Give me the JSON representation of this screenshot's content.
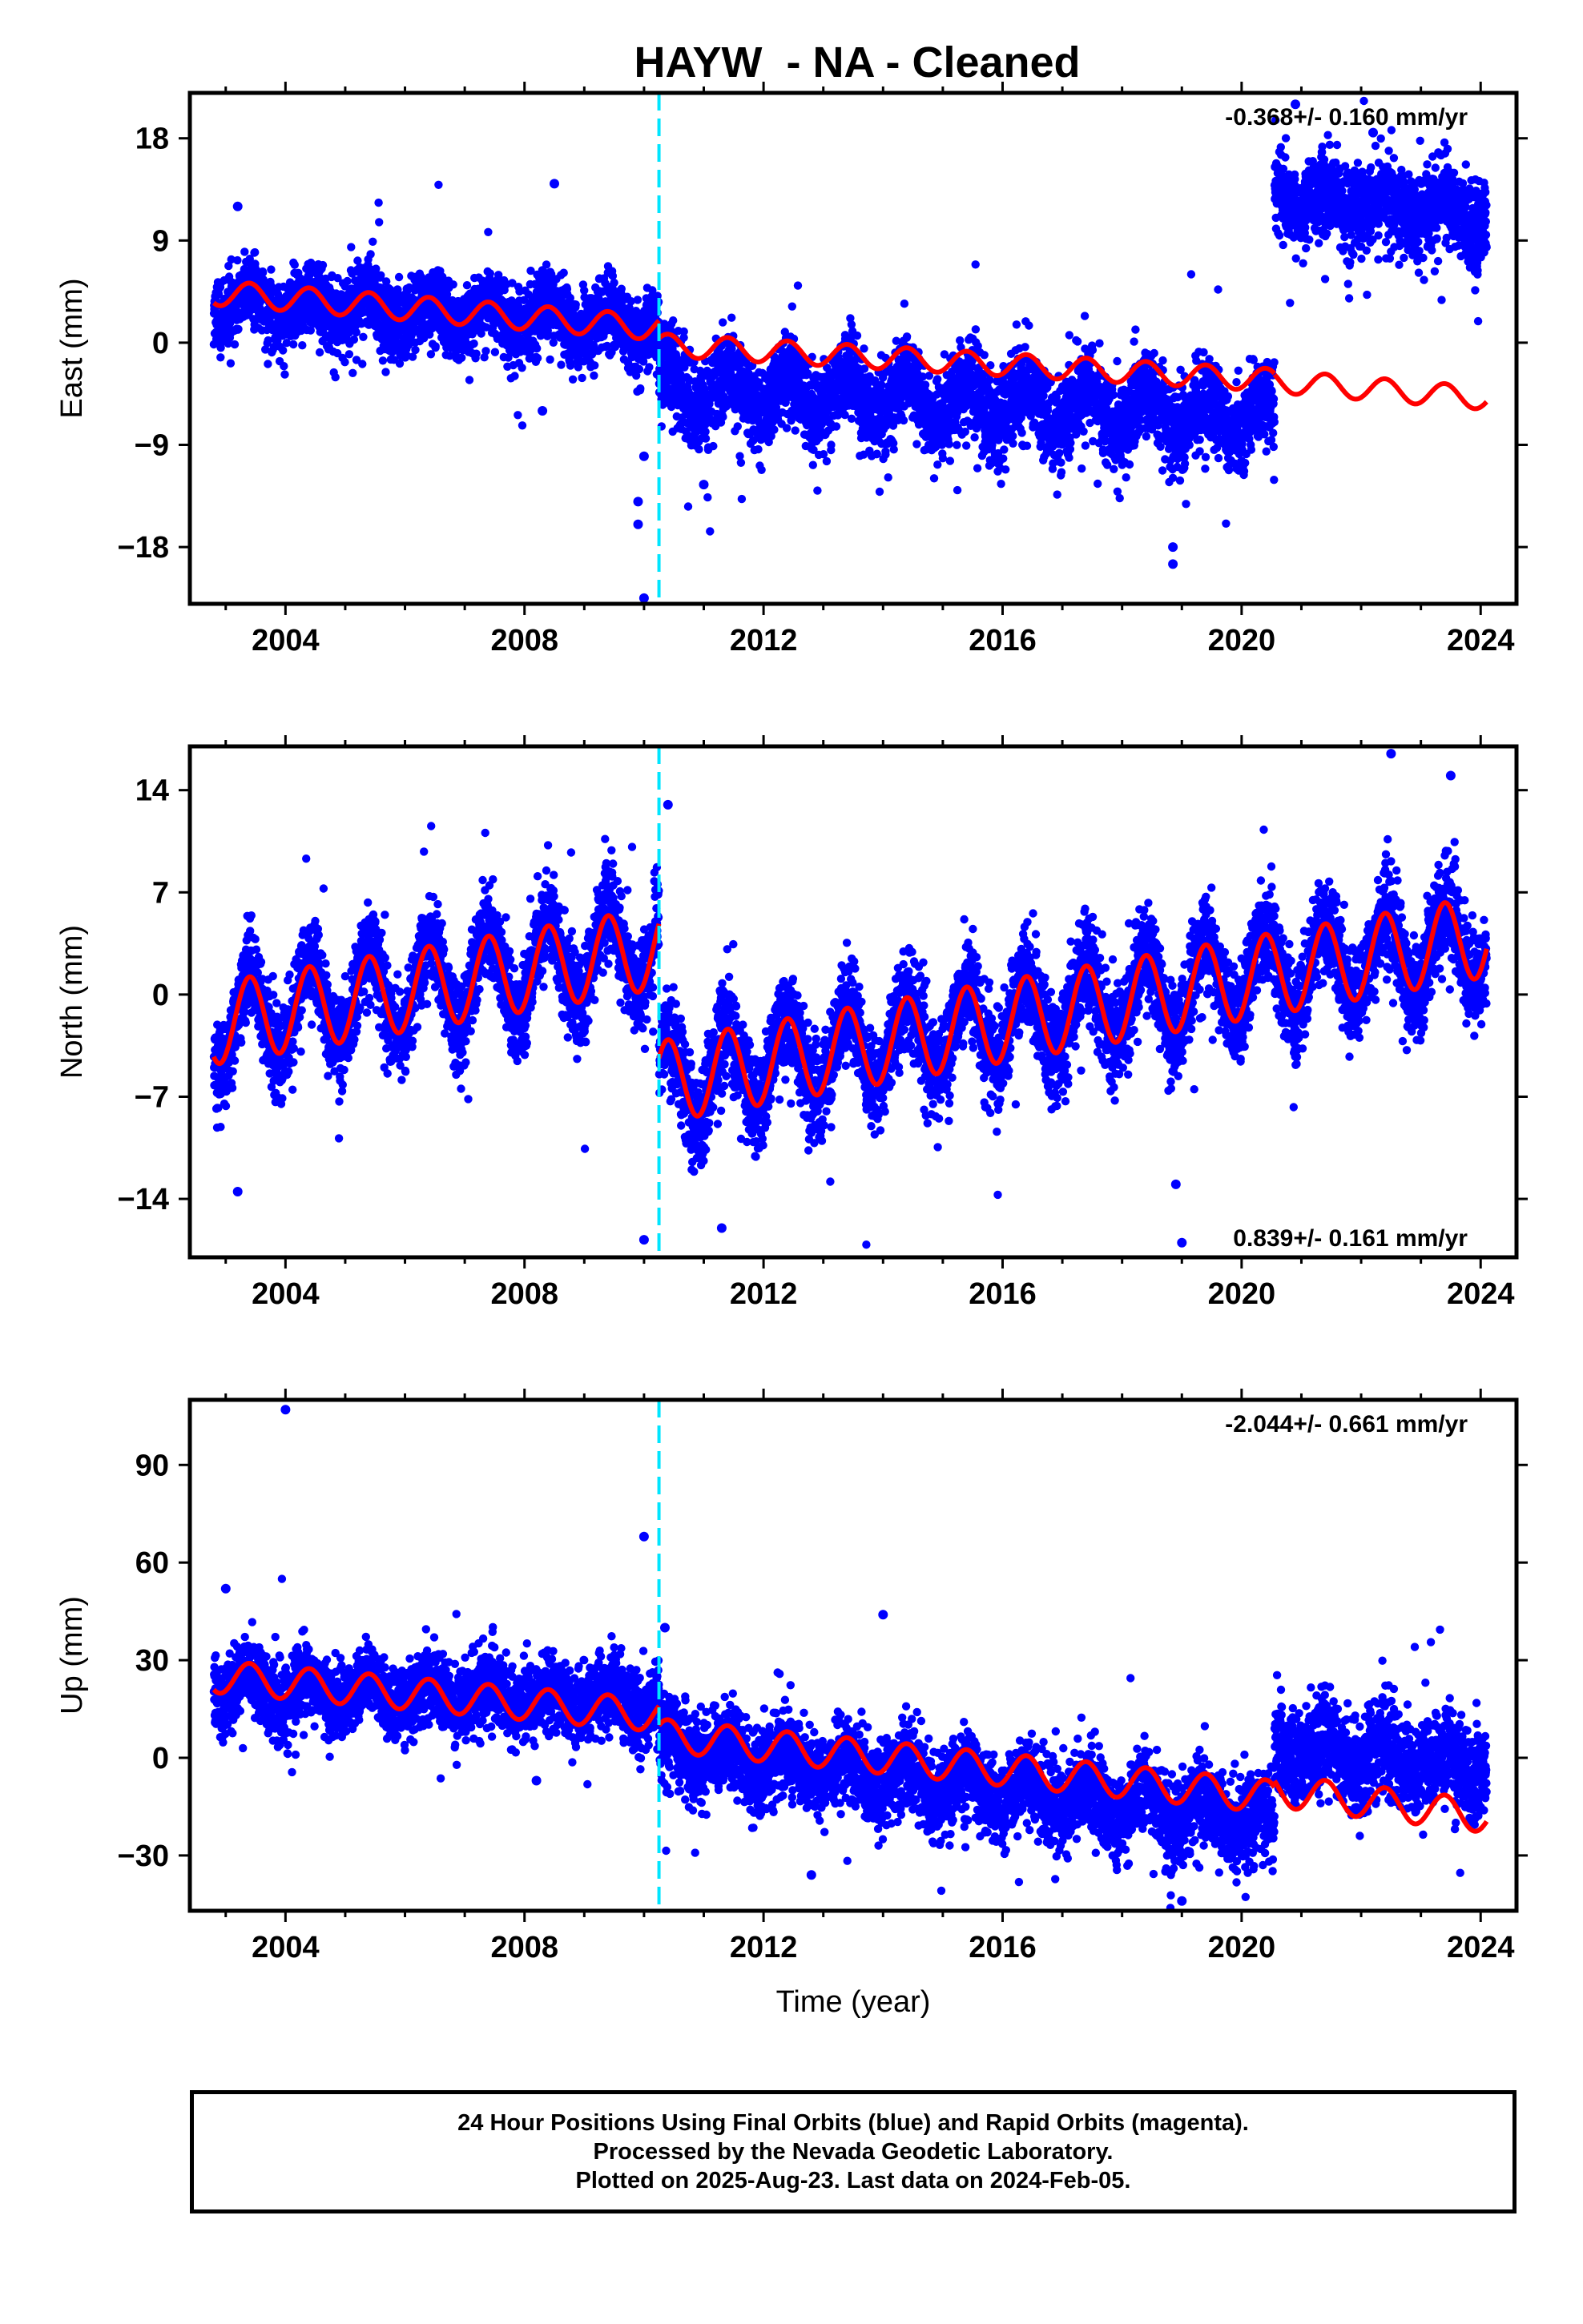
{
  "chart_data": {
    "type": "scatter",
    "title": "HAYW  - NA - Cleaned",
    "xlabel": "Time (year)",
    "xlim": [
      2002.4,
      2024.6
    ],
    "xticks": [
      2004,
      2008,
      2012,
      2016,
      2020,
      2024
    ],
    "xtick_labels": [
      "2004",
      "2008",
      "2012",
      "2016",
      "2020",
      "2024"
    ],
    "event_line_x": 2010.25,
    "colors": {
      "points": "#0000ff",
      "model": "#ff0000",
      "event": "#00e5ff"
    },
    "panels": [
      {
        "id": "east",
        "ylabel": "East (mm)",
        "ylim": [
          -23,
          22
        ],
        "yticks": [
          -18,
          -9,
          0,
          9,
          18
        ],
        "ytick_labels": [
          "−18",
          "−9",
          "0",
          "9",
          "18"
        ],
        "rate_label": "-0.368+/- 0.160 mm/yr",
        "rate_position": "top-right",
        "segments": [
          {
            "from": 2002.8,
            "to": 2010.25,
            "mean": [
              3.5,
              1.5
            ],
            "scatter": 1.6,
            "amp": 1.2,
            "model_mean": [
              4.4,
              1.3
            ],
            "model_amp": 1.1
          },
          {
            "from": 2010.25,
            "to": 2020.55,
            "mean": [
              -4.0,
              -6.5
            ],
            "scatter": 1.9,
            "amp": 1.8,
            "model_mean": [
              -0.2,
              -3.3
            ],
            "model_amp": 1.0
          },
          {
            "from": 2020.55,
            "to": 2024.1,
            "mean": [
              13.0,
              11.0
            ],
            "scatter": 1.8,
            "amp": 1.0,
            "model_mean": [
              -3.4,
              -4.9
            ],
            "model_amp": 1.0
          }
        ],
        "outliers": [
          {
            "x": 2003.2,
            "y": 12.0
          },
          {
            "x": 2008.5,
            "y": 14.0
          },
          {
            "x": 2008.3,
            "y": -6.0
          },
          {
            "x": 2010.0,
            "y": -22.5
          },
          {
            "x": 2009.9,
            "y": -14.0
          },
          {
            "x": 2009.9,
            "y": -16.0
          },
          {
            "x": 2010.0,
            "y": -10.0
          },
          {
            "x": 2011.0,
            "y": -12.5
          },
          {
            "x": 2018.85,
            "y": -18.0
          },
          {
            "x": 2018.85,
            "y": -19.5
          },
          {
            "x": 2020.9,
            "y": 21.0
          },
          {
            "x": 2022.2,
            "y": 18.5
          }
        ]
      },
      {
        "id": "north",
        "ylabel": "North (mm)",
        "ylim": [
          -18,
          17
        ],
        "yticks": [
          -14,
          -7,
          0,
          7,
          14
        ],
        "ytick_labels": [
          "−14",
          "−7",
          "0",
          "7",
          "14"
        ],
        "rate_label": "0.839+/- 0.161 mm/yr",
        "rate_position": "bottom-right",
        "segments": [
          {
            "from": 2002.8,
            "to": 2010.25,
            "mean": [
              -2.0,
              3.5
            ],
            "scatter": 1.6,
            "amp": 3.0,
            "model_mean": [
              -2.0,
              3.2
            ],
            "model_amp": 2.8
          },
          {
            "from": 2010.25,
            "to": 2024.1,
            "mean": [
              -6.0,
              4.0
            ],
            "scatter": 1.7,
            "amp": 2.8,
            "model_mean": [
              -6.0,
              4.0
            ],
            "model_amp": 2.8
          }
        ],
        "outliers": [
          {
            "x": 2003.2,
            "y": -13.5
          },
          {
            "x": 2010.0,
            "y": -16.8
          },
          {
            "x": 2011.3,
            "y": -16.0
          },
          {
            "x": 2018.9,
            "y": -13.0
          },
          {
            "x": 2019.0,
            "y": -17.0
          },
          {
            "x": 2022.5,
            "y": 16.5
          },
          {
            "x": 2023.5,
            "y": 15.0
          },
          {
            "x": 2010.4,
            "y": 13.0
          }
        ]
      },
      {
        "id": "up",
        "ylabel": "Up (mm)",
        "ylim": [
          -47,
          110
        ],
        "yticks": [
          -30,
          0,
          30,
          60,
          90
        ],
        "ytick_labels": [
          "−30",
          "0",
          "30",
          "60",
          "90"
        ],
        "rate_label": "-2.044+/- 0.661 mm/yr",
        "rate_position": "top-right",
        "segments": [
          {
            "from": 2002.8,
            "to": 2010.25,
            "mean": [
              22.0,
              17.0
            ],
            "scatter": 5.5,
            "amp": 4.0,
            "model_mean": [
              25.0,
              13.0
            ],
            "model_amp": 5.0
          },
          {
            "from": 2010.25,
            "to": 2020.55,
            "mean": [
              3.0,
              -20.0
            ],
            "scatter": 6.5,
            "amp": 4.5,
            "model_mean": [
              7.0,
              -12.0
            ],
            "model_amp": 5.0
          },
          {
            "from": 2020.55,
            "to": 2024.1,
            "mean": [
              3.0,
              -3.0
            ],
            "scatter": 7.0,
            "amp": 4.0,
            "model_mean": [
              -10.0,
              -18.0
            ],
            "model_amp": 5.0
          }
        ],
        "outliers": [
          {
            "x": 2004.0,
            "y": 107.0
          },
          {
            "x": 2010.0,
            "y": 68.0
          },
          {
            "x": 2014.0,
            "y": 44.0
          },
          {
            "x": 2003.0,
            "y": 52.0
          },
          {
            "x": 2008.2,
            "y": -7.0
          },
          {
            "x": 2019.0,
            "y": -44.0
          },
          {
            "x": 2010.35,
            "y": 40.0
          },
          {
            "x": 2012.8,
            "y": -36.0
          }
        ]
      }
    ]
  },
  "footer": {
    "line1": "24 Hour Positions Using Final Orbits (blue) and Rapid Orbits (magenta).",
    "line2": "Processed by the Nevada Geodetic Laboratory.",
    "line3": "Plotted on 2025-Aug-23. Last data on 2024-Feb-05."
  }
}
